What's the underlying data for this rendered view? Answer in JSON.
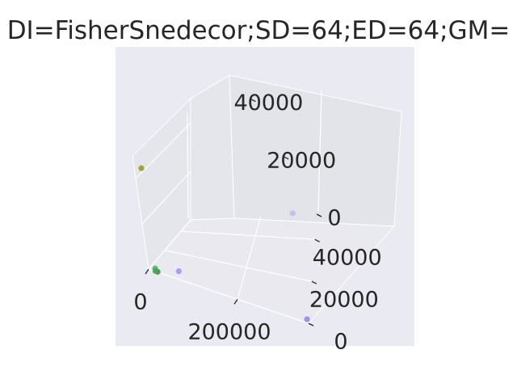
{
  "chart_data": {
    "type": "scatter",
    "projection": "3d",
    "title": "DI=FisherSnedecor;SD=64;ED=64;GM=",
    "xlabel": "",
    "ylabel": "",
    "zlabel": "",
    "xlim": [
      0,
      360000
    ],
    "ylim": [
      0,
      52000
    ],
    "zlim": [
      0,
      50000
    ],
    "x_ticks": [
      {
        "value": 0,
        "label": "0"
      },
      {
        "value": 200000,
        "label": "200000"
      }
    ],
    "y_ticks": [
      {
        "value": 0,
        "label": "0"
      },
      {
        "value": 20000,
        "label": "20000"
      },
      {
        "value": 40000,
        "label": "40000"
      }
    ],
    "z_ticks": [
      {
        "value": 0,
        "label": "0"
      },
      {
        "value": 20000,
        "label": "20000"
      },
      {
        "value": 40000,
        "label": "40000"
      }
    ],
    "grid": true,
    "background": "#eaeaf2",
    "points": [
      {
        "x": 5000,
        "y": 3000,
        "z": 43000,
        "color": "#9aa32c"
      },
      {
        "x": 300000,
        "y": 50000,
        "z": 2000,
        "color": "#c4bcf0"
      },
      {
        "x": 60000,
        "y": 5000,
        "z": 500,
        "color": "#a49af2"
      },
      {
        "x": 355000,
        "y": 1000,
        "z": 300,
        "color": "#9c8cf0"
      },
      {
        "x": 15000,
        "y": 200,
        "z": 1200,
        "color": "#5ab86a"
      },
      {
        "x": 20000,
        "y": 100,
        "z": 100,
        "color": "#3d9a4f"
      },
      {
        "x": 15000,
        "y": 200,
        "z": 100,
        "color": "#49a35d"
      }
    ]
  }
}
